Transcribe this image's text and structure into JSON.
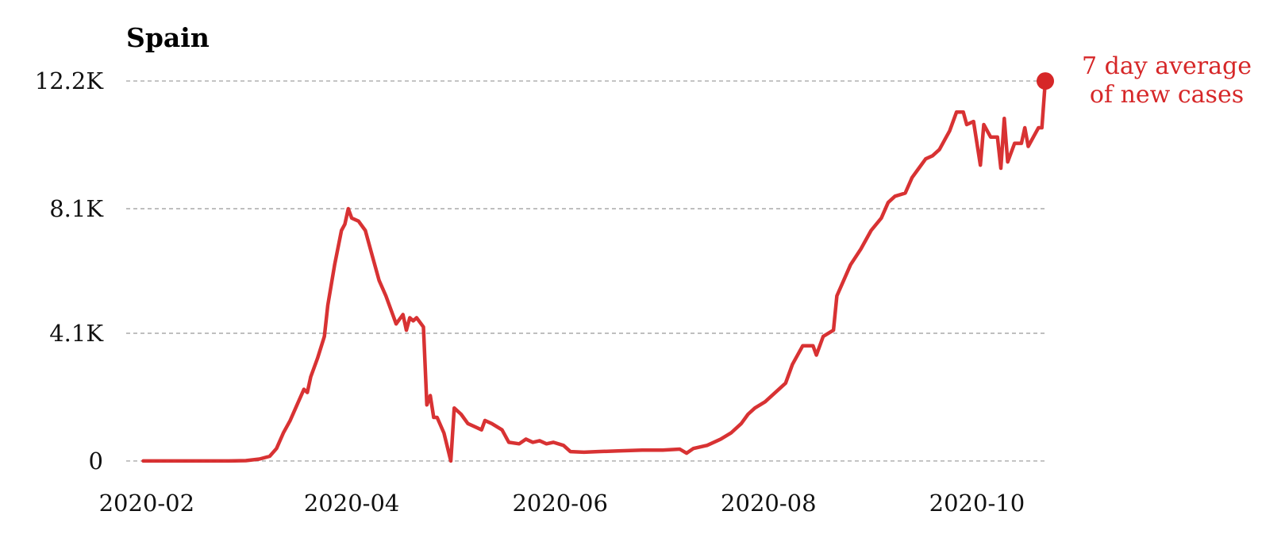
{
  "chart_data": {
    "type": "line",
    "title": "Spain",
    "xlabel": "",
    "ylabel": "",
    "x_ticks": [
      {
        "date": "2020-02-01",
        "label": "2020-02"
      },
      {
        "date": "2020-04-01",
        "label": "2020-04"
      },
      {
        "date": "2020-06-01",
        "label": "2020-06"
      },
      {
        "date": "2020-08-01",
        "label": "2020-08"
      },
      {
        "date": "2020-10-01",
        "label": "2020-10"
      }
    ],
    "xlim": [
      "2020-01-26",
      "2020-10-21"
    ],
    "y_ticks": [
      {
        "value": 0,
        "label": "0"
      },
      {
        "value": 4100,
        "label": "4.1K"
      },
      {
        "value": 8100,
        "label": "8.1K"
      },
      {
        "value": 12200,
        "label": "12.2K"
      }
    ],
    "ylim": [
      -1200,
      13400
    ],
    "grid": "horizontal dashed",
    "annotation": {
      "lines": [
        "7 day average",
        "of new cases"
      ],
      "color": "#d62728"
    },
    "series": [
      {
        "color": "#d62728",
        "points": [
          [
            "2020-01-31",
            0
          ],
          [
            "2020-02-15",
            0
          ],
          [
            "2020-02-25",
            0
          ],
          [
            "2020-03-01",
            10
          ],
          [
            "2020-03-05",
            60
          ],
          [
            "2020-03-08",
            150
          ],
          [
            "2020-03-10",
            400
          ],
          [
            "2020-03-12",
            900
          ],
          [
            "2020-03-14",
            1300
          ],
          [
            "2020-03-16",
            1800
          ],
          [
            "2020-03-18",
            2300
          ],
          [
            "2020-03-19",
            2200
          ],
          [
            "2020-03-20",
            2700
          ],
          [
            "2020-03-22",
            3300
          ],
          [
            "2020-03-24",
            4000
          ],
          [
            "2020-03-25",
            5000
          ],
          [
            "2020-03-27",
            6300
          ],
          [
            "2020-03-29",
            7400
          ],
          [
            "2020-03-30",
            7600
          ],
          [
            "2020-03-31",
            8100
          ],
          [
            "2020-04-01",
            7800
          ],
          [
            "2020-04-03",
            7700
          ],
          [
            "2020-04-05",
            7400
          ],
          [
            "2020-04-07",
            6600
          ],
          [
            "2020-04-09",
            5800
          ],
          [
            "2020-04-11",
            5300
          ],
          [
            "2020-04-13",
            4700
          ],
          [
            "2020-04-14",
            4400
          ],
          [
            "2020-04-16",
            4700
          ],
          [
            "2020-04-17",
            4200
          ],
          [
            "2020-04-18",
            4600
          ],
          [
            "2020-04-19",
            4500
          ],
          [
            "2020-04-20",
            4600
          ],
          [
            "2020-04-22",
            4300
          ],
          [
            "2020-04-23",
            1800
          ],
          [
            "2020-04-24",
            2100
          ],
          [
            "2020-04-25",
            1400
          ],
          [
            "2020-04-26",
            1400
          ],
          [
            "2020-04-28",
            900
          ],
          [
            "2020-04-30",
            0
          ],
          [
            "2020-05-01",
            1700
          ],
          [
            "2020-05-03",
            1500
          ],
          [
            "2020-05-05",
            1200
          ],
          [
            "2020-05-07",
            1100
          ],
          [
            "2020-05-09",
            1000
          ],
          [
            "2020-05-10",
            1300
          ],
          [
            "2020-05-12",
            1200
          ],
          [
            "2020-05-15",
            1000
          ],
          [
            "2020-05-17",
            600
          ],
          [
            "2020-05-20",
            550
          ],
          [
            "2020-05-22",
            700
          ],
          [
            "2020-05-24",
            600
          ],
          [
            "2020-05-26",
            650
          ],
          [
            "2020-05-28",
            550
          ],
          [
            "2020-05-30",
            600
          ],
          [
            "2020-06-02",
            500
          ],
          [
            "2020-06-04",
            300
          ],
          [
            "2020-06-08",
            280
          ],
          [
            "2020-06-12",
            300
          ],
          [
            "2020-06-18",
            320
          ],
          [
            "2020-06-25",
            350
          ],
          [
            "2020-07-01",
            350
          ],
          [
            "2020-07-06",
            380
          ],
          [
            "2020-07-08",
            250
          ],
          [
            "2020-07-10",
            400
          ],
          [
            "2020-07-14",
            500
          ],
          [
            "2020-07-18",
            700
          ],
          [
            "2020-07-21",
            900
          ],
          [
            "2020-07-24",
            1200
          ],
          [
            "2020-07-26",
            1500
          ],
          [
            "2020-07-28",
            1700
          ],
          [
            "2020-07-31",
            1900
          ],
          [
            "2020-08-03",
            2200
          ],
          [
            "2020-08-06",
            2500
          ],
          [
            "2020-08-08",
            3100
          ],
          [
            "2020-08-11",
            3700
          ],
          [
            "2020-08-14",
            3700
          ],
          [
            "2020-08-15",
            3400
          ],
          [
            "2020-08-17",
            4000
          ],
          [
            "2020-08-20",
            4200
          ],
          [
            "2020-08-21",
            5300
          ],
          [
            "2020-08-23",
            5800
          ],
          [
            "2020-08-25",
            6300
          ],
          [
            "2020-08-28",
            6800
          ],
          [
            "2020-08-31",
            7400
          ],
          [
            "2020-09-03",
            7800
          ],
          [
            "2020-09-05",
            8300
          ],
          [
            "2020-09-07",
            8500
          ],
          [
            "2020-09-10",
            8600
          ],
          [
            "2020-09-12",
            9100
          ],
          [
            "2020-09-14",
            9400
          ],
          [
            "2020-09-16",
            9700
          ],
          [
            "2020-09-18",
            9800
          ],
          [
            "2020-09-20",
            10000
          ],
          [
            "2020-09-22",
            10400
          ],
          [
            "2020-09-23",
            10600
          ],
          [
            "2020-09-25",
            11200
          ],
          [
            "2020-09-27",
            11200
          ],
          [
            "2020-09-28",
            10800
          ],
          [
            "2020-09-30",
            10900
          ],
          [
            "2020-10-02",
            9500
          ],
          [
            "2020-10-03",
            10800
          ],
          [
            "2020-10-05",
            10400
          ],
          [
            "2020-10-07",
            10400
          ],
          [
            "2020-10-08",
            9400
          ],
          [
            "2020-10-09",
            11000
          ],
          [
            "2020-10-10",
            9600
          ],
          [
            "2020-10-12",
            10200
          ],
          [
            "2020-10-14",
            10200
          ],
          [
            "2020-10-15",
            10700
          ],
          [
            "2020-10-16",
            10100
          ],
          [
            "2020-10-18",
            10500
          ],
          [
            "2020-10-19",
            10700
          ],
          [
            "2020-10-20",
            10700
          ],
          [
            "2020-10-21",
            12200
          ]
        ]
      }
    ]
  }
}
